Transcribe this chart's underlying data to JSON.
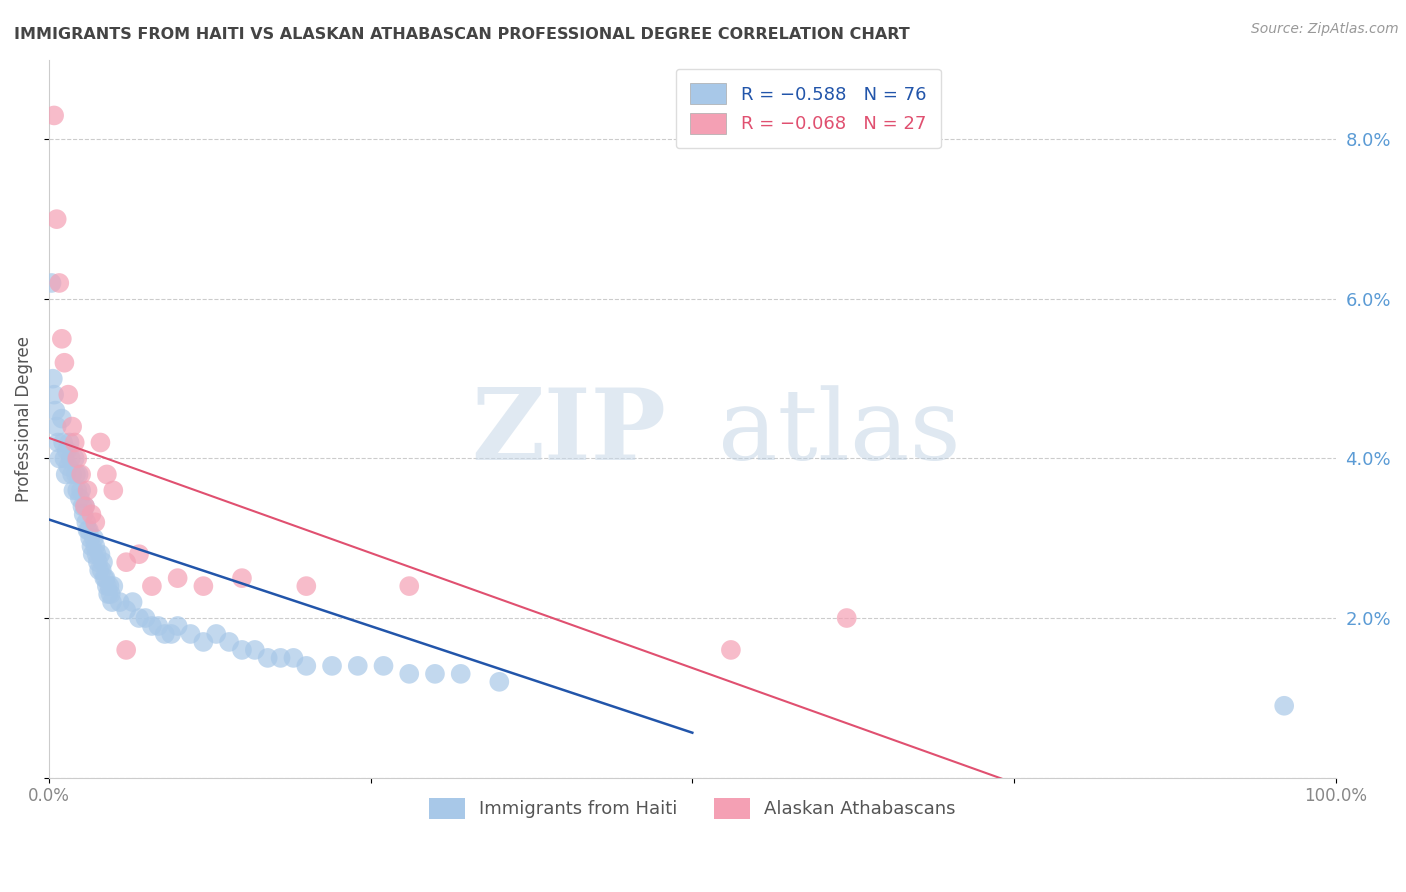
{
  "title": "IMMIGRANTS FROM HAITI VS ALASKAN ATHABASCAN PROFESSIONAL DEGREE CORRELATION CHART",
  "source": "Source: ZipAtlas.com",
  "ylabel": "Professional Degree",
  "ylim": [
    0.0,
    0.09
  ],
  "xlim": [
    0.0,
    1.0
  ],
  "yticks": [
    0.0,
    0.02,
    0.04,
    0.06,
    0.08
  ],
  "ytick_labels": [
    "",
    "2.0%",
    "4.0%",
    "6.0%",
    "8.0%"
  ],
  "xticks": [
    0.0,
    0.25,
    0.5,
    0.75,
    1.0
  ],
  "xtick_labels": [
    "0.0%",
    "",
    "",
    "",
    "100.0%"
  ],
  "legend_labels_bottom": [
    "Immigrants from Haiti",
    "Alaskan Athabascans"
  ],
  "series_blue": {
    "color": "#a8c8e8",
    "line_color": "#2255aa",
    "x": [
      0.002,
      0.003,
      0.004,
      0.005,
      0.006,
      0.007,
      0.008,
      0.01,
      0.011,
      0.012,
      0.013,
      0.014,
      0.015,
      0.016,
      0.017,
      0.018,
      0.019,
      0.02,
      0.021,
      0.022,
      0.023,
      0.024,
      0.025,
      0.026,
      0.027,
      0.028,
      0.029,
      0.03,
      0.031,
      0.032,
      0.033,
      0.034,
      0.035,
      0.036,
      0.037,
      0.038,
      0.039,
      0.04,
      0.041,
      0.042,
      0.043,
      0.044,
      0.045,
      0.046,
      0.047,
      0.048,
      0.049,
      0.05,
      0.055,
      0.06,
      0.065,
      0.07,
      0.075,
      0.08,
      0.085,
      0.09,
      0.095,
      0.1,
      0.11,
      0.12,
      0.13,
      0.14,
      0.15,
      0.16,
      0.17,
      0.18,
      0.19,
      0.2,
      0.22,
      0.24,
      0.26,
      0.28,
      0.3,
      0.32,
      0.35,
      0.96
    ],
    "y": [
      0.062,
      0.05,
      0.048,
      0.046,
      0.044,
      0.042,
      0.04,
      0.045,
      0.042,
      0.04,
      0.038,
      0.041,
      0.039,
      0.042,
      0.04,
      0.038,
      0.036,
      0.04,
      0.038,
      0.036,
      0.038,
      0.035,
      0.036,
      0.034,
      0.033,
      0.034,
      0.032,
      0.031,
      0.031,
      0.03,
      0.029,
      0.028,
      0.03,
      0.029,
      0.028,
      0.027,
      0.026,
      0.028,
      0.026,
      0.027,
      0.025,
      0.025,
      0.024,
      0.023,
      0.024,
      0.023,
      0.022,
      0.024,
      0.022,
      0.021,
      0.022,
      0.02,
      0.02,
      0.019,
      0.019,
      0.018,
      0.018,
      0.019,
      0.018,
      0.017,
      0.018,
      0.017,
      0.016,
      0.016,
      0.015,
      0.015,
      0.015,
      0.014,
      0.014,
      0.014,
      0.014,
      0.013,
      0.013,
      0.013,
      0.012,
      0.009
    ]
  },
  "series_pink": {
    "color": "#f4a0b4",
    "line_color": "#e05070",
    "x": [
      0.004,
      0.006,
      0.008,
      0.01,
      0.012,
      0.015,
      0.018,
      0.02,
      0.022,
      0.025,
      0.028,
      0.03,
      0.033,
      0.036,
      0.04,
      0.045,
      0.05,
      0.06,
      0.07,
      0.08,
      0.1,
      0.12,
      0.15,
      0.2,
      0.28,
      0.62,
      0.53,
      0.06
    ],
    "y": [
      0.083,
      0.07,
      0.062,
      0.055,
      0.052,
      0.048,
      0.044,
      0.042,
      0.04,
      0.038,
      0.034,
      0.036,
      0.033,
      0.032,
      0.042,
      0.038,
      0.036,
      0.027,
      0.028,
      0.024,
      0.025,
      0.024,
      0.025,
      0.024,
      0.024,
      0.02,
      0.016,
      0.016
    ]
  },
  "watermark_zip": "ZIP",
  "watermark_atlas": "atlas",
  "bg_color": "#ffffff",
  "grid_color": "#cccccc",
  "title_color": "#444444",
  "tick_label_color_right": "#5b9bd5",
  "tick_label_color_x": "#888888"
}
